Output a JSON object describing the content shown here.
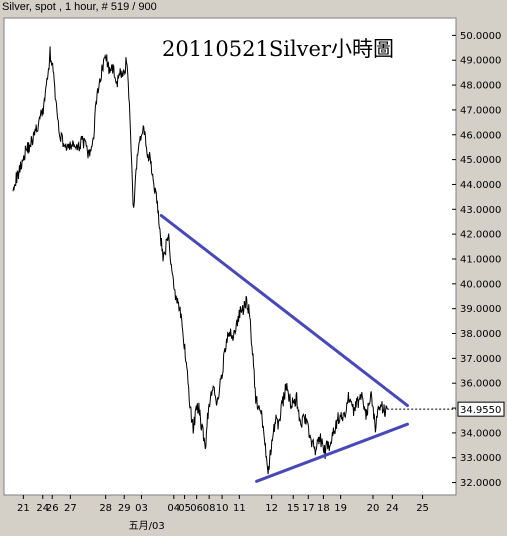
{
  "header": {
    "text": "Silver, spot , 1 hour, # 519 / 900"
  },
  "chart_data": {
    "type": "line",
    "title": "20110521Silver小時圖",
    "xlabel": "",
    "ylabel": "",
    "x_range": [
      0,
      900
    ],
    "ylim": [
      31.5,
      50.7
    ],
    "y_ticks": [
      32,
      33,
      34,
      35,
      36,
      37,
      38,
      39,
      40,
      41,
      42,
      43,
      44,
      45,
      46,
      47,
      48,
      49,
      50
    ],
    "y_tick_labels": [
      "32.0000",
      "33.0000",
      "34.0000",
      "35.0000",
      "36.0000",
      "37.0000",
      "38.0000",
      "39.0000",
      "40.0000",
      "41.0000",
      "42.0000",
      "43.0000",
      "44.0000",
      "45.0000",
      "46.0000",
      "47.0000",
      "48.0000",
      "49.0000",
      "50.0000"
    ],
    "x_ticks": [
      {
        "x": 24,
        "label": "21"
      },
      {
        "x": 69,
        "label": "24"
      },
      {
        "x": 91,
        "label": "26"
      },
      {
        "x": 133,
        "label": "27"
      },
      {
        "x": 215,
        "label": "28"
      },
      {
        "x": 258,
        "label": "29"
      },
      {
        "x": 298,
        "label": "03"
      },
      {
        "x": 373,
        "label": "04"
      },
      {
        "x": 398,
        "label": "05"
      },
      {
        "x": 426,
        "label": "06"
      },
      {
        "x": 455,
        "label": "08"
      },
      {
        "x": 485,
        "label": "10"
      },
      {
        "x": 525,
        "label": "11"
      },
      {
        "x": 600,
        "label": "12"
      },
      {
        "x": 650,
        "label": "15"
      },
      {
        "x": 685,
        "label": "17"
      },
      {
        "x": 720,
        "label": "18"
      },
      {
        "x": 760,
        "label": "19"
      },
      {
        "x": 835,
        "label": "20"
      },
      {
        "x": 880,
        "label": "24"
      },
      {
        "x": 950,
        "label": "25"
      }
    ],
    "x_sublabel": {
      "x": 310,
      "label": "五月/03"
    },
    "last_value": {
      "value": 34.955,
      "label": "34.9550"
    },
    "series": [
      {
        "values": [
          [
            0,
            44.0
          ],
          [
            10,
            44.3
          ],
          [
            20,
            44.9
          ],
          [
            30,
            45.4
          ],
          [
            40,
            45.6
          ],
          [
            50,
            46.0
          ],
          [
            60,
            46.5
          ],
          [
            70,
            47.0
          ],
          [
            75,
            47.8
          ],
          [
            80,
            48.2
          ],
          [
            86,
            49.3
          ],
          [
            92,
            48.7
          ],
          [
            98,
            47.6
          ],
          [
            105,
            46.3
          ],
          [
            112,
            45.9
          ],
          [
            120,
            45.6
          ],
          [
            130,
            45.4
          ],
          [
            140,
            45.7
          ],
          [
            150,
            45.3
          ],
          [
            160,
            45.9
          ],
          [
            170,
            45.4
          ],
          [
            178,
            45.1
          ],
          [
            186,
            45.8
          ],
          [
            195,
            47.7
          ],
          [
            205,
            48.5
          ],
          [
            215,
            49.2
          ],
          [
            225,
            48.5
          ],
          [
            235,
            48.6
          ],
          [
            242,
            48.1
          ],
          [
            250,
            48.5
          ],
          [
            258,
            48.3
          ],
          [
            262,
            49.0
          ],
          [
            266,
            48.6
          ],
          [
            270,
            47.3
          ],
          [
            274,
            45.5
          ],
          [
            277,
            44.0
          ],
          [
            280,
            42.8
          ],
          [
            283,
            43.7
          ],
          [
            288,
            45.2
          ],
          [
            295,
            45.8
          ],
          [
            302,
            46.3
          ],
          [
            306,
            45.9
          ],
          [
            312,
            45.1
          ],
          [
            318,
            45.3
          ],
          [
            324,
            44.3
          ],
          [
            330,
            43.7
          ],
          [
            336,
            43.0
          ],
          [
            342,
            41.9
          ],
          [
            348,
            41.1
          ],
          [
            354,
            41.4
          ],
          [
            360,
            42.0
          ],
          [
            366,
            41.0
          ],
          [
            372,
            40.0
          ],
          [
            378,
            39.5
          ],
          [
            384,
            39.3
          ],
          [
            390,
            38.6
          ],
          [
            396,
            37.6
          ],
          [
            402,
            37.0
          ],
          [
            406,
            36.1
          ],
          [
            410,
            35.2
          ],
          [
            414,
            34.6
          ],
          [
            418,
            34.2
          ],
          [
            424,
            34.8
          ],
          [
            430,
            35.1
          ],
          [
            436,
            34.4
          ],
          [
            442,
            33.9
          ],
          [
            446,
            33.3
          ],
          [
            450,
            34.4
          ],
          [
            456,
            35.1
          ],
          [
            462,
            35.8
          ],
          [
            468,
            35.6
          ],
          [
            472,
            35.1
          ],
          [
            478,
            35.7
          ],
          [
            486,
            36.6
          ],
          [
            494,
            37.6
          ],
          [
            502,
            38.0
          ],
          [
            510,
            37.9
          ],
          [
            518,
            38.3
          ],
          [
            526,
            38.8
          ],
          [
            534,
            39.0
          ],
          [
            542,
            39.3
          ],
          [
            548,
            38.9
          ],
          [
            553,
            37.8
          ],
          [
            558,
            36.8
          ],
          [
            563,
            35.4
          ],
          [
            568,
            35.0
          ],
          [
            573,
            34.9
          ],
          [
            578,
            34.6
          ],
          [
            583,
            33.8
          ],
          [
            588,
            32.8
          ],
          [
            593,
            32.5
          ],
          [
            598,
            33.3
          ],
          [
            604,
            34.0
          ],
          [
            610,
            34.6
          ],
          [
            616,
            34.3
          ],
          [
            622,
            35.0
          ],
          [
            628,
            35.4
          ],
          [
            634,
            35.9
          ],
          [
            640,
            35.5
          ],
          [
            646,
            35.1
          ],
          [
            652,
            35.3
          ],
          [
            658,
            35.4
          ],
          [
            664,
            34.7
          ],
          [
            670,
            34.4
          ],
          [
            676,
            34.6
          ],
          [
            682,
            34.3
          ],
          [
            688,
            33.9
          ],
          [
            694,
            33.6
          ],
          [
            700,
            33.3
          ],
          [
            706,
            33.5
          ],
          [
            712,
            33.8
          ],
          [
            718,
            33.5
          ],
          [
            724,
            33.2
          ],
          [
            730,
            33.6
          ],
          [
            736,
            33.5
          ],
          [
            742,
            33.9
          ],
          [
            748,
            34.2
          ],
          [
            754,
            34.6
          ],
          [
            760,
            34.7
          ],
          [
            766,
            34.5
          ],
          [
            772,
            34.9
          ],
          [
            778,
            35.5
          ],
          [
            784,
            35.0
          ],
          [
            790,
            34.9
          ],
          [
            796,
            35.3
          ],
          [
            802,
            35.2
          ],
          [
            808,
            35.6
          ],
          [
            814,
            35.1
          ],
          [
            820,
            34.7
          ],
          [
            826,
            35.3
          ],
          [
            832,
            35.5
          ],
          [
            838,
            34.6
          ],
          [
            842,
            34.1
          ],
          [
            846,
            35.2
          ],
          [
            850,
            35.0
          ],
          [
            856,
            35.1
          ],
          [
            862,
            34.9
          ],
          [
            868,
            34.955
          ]
        ]
      }
    ],
    "annotations": [
      {
        "type": "trendline",
        "color": "#4848b8",
        "from": [
          344,
          42.75
        ],
        "to": [
          915,
          35.1
        ]
      },
      {
        "type": "trendline",
        "color": "#4848b8",
        "from": [
          565,
          32.05
        ],
        "to": [
          915,
          34.35
        ]
      }
    ],
    "colors": {
      "background": "#ffffff",
      "frame": "#d4d0c8",
      "price": "#000000",
      "trendline": "#4848b8",
      "last_value_label": "#ff0000"
    }
  }
}
